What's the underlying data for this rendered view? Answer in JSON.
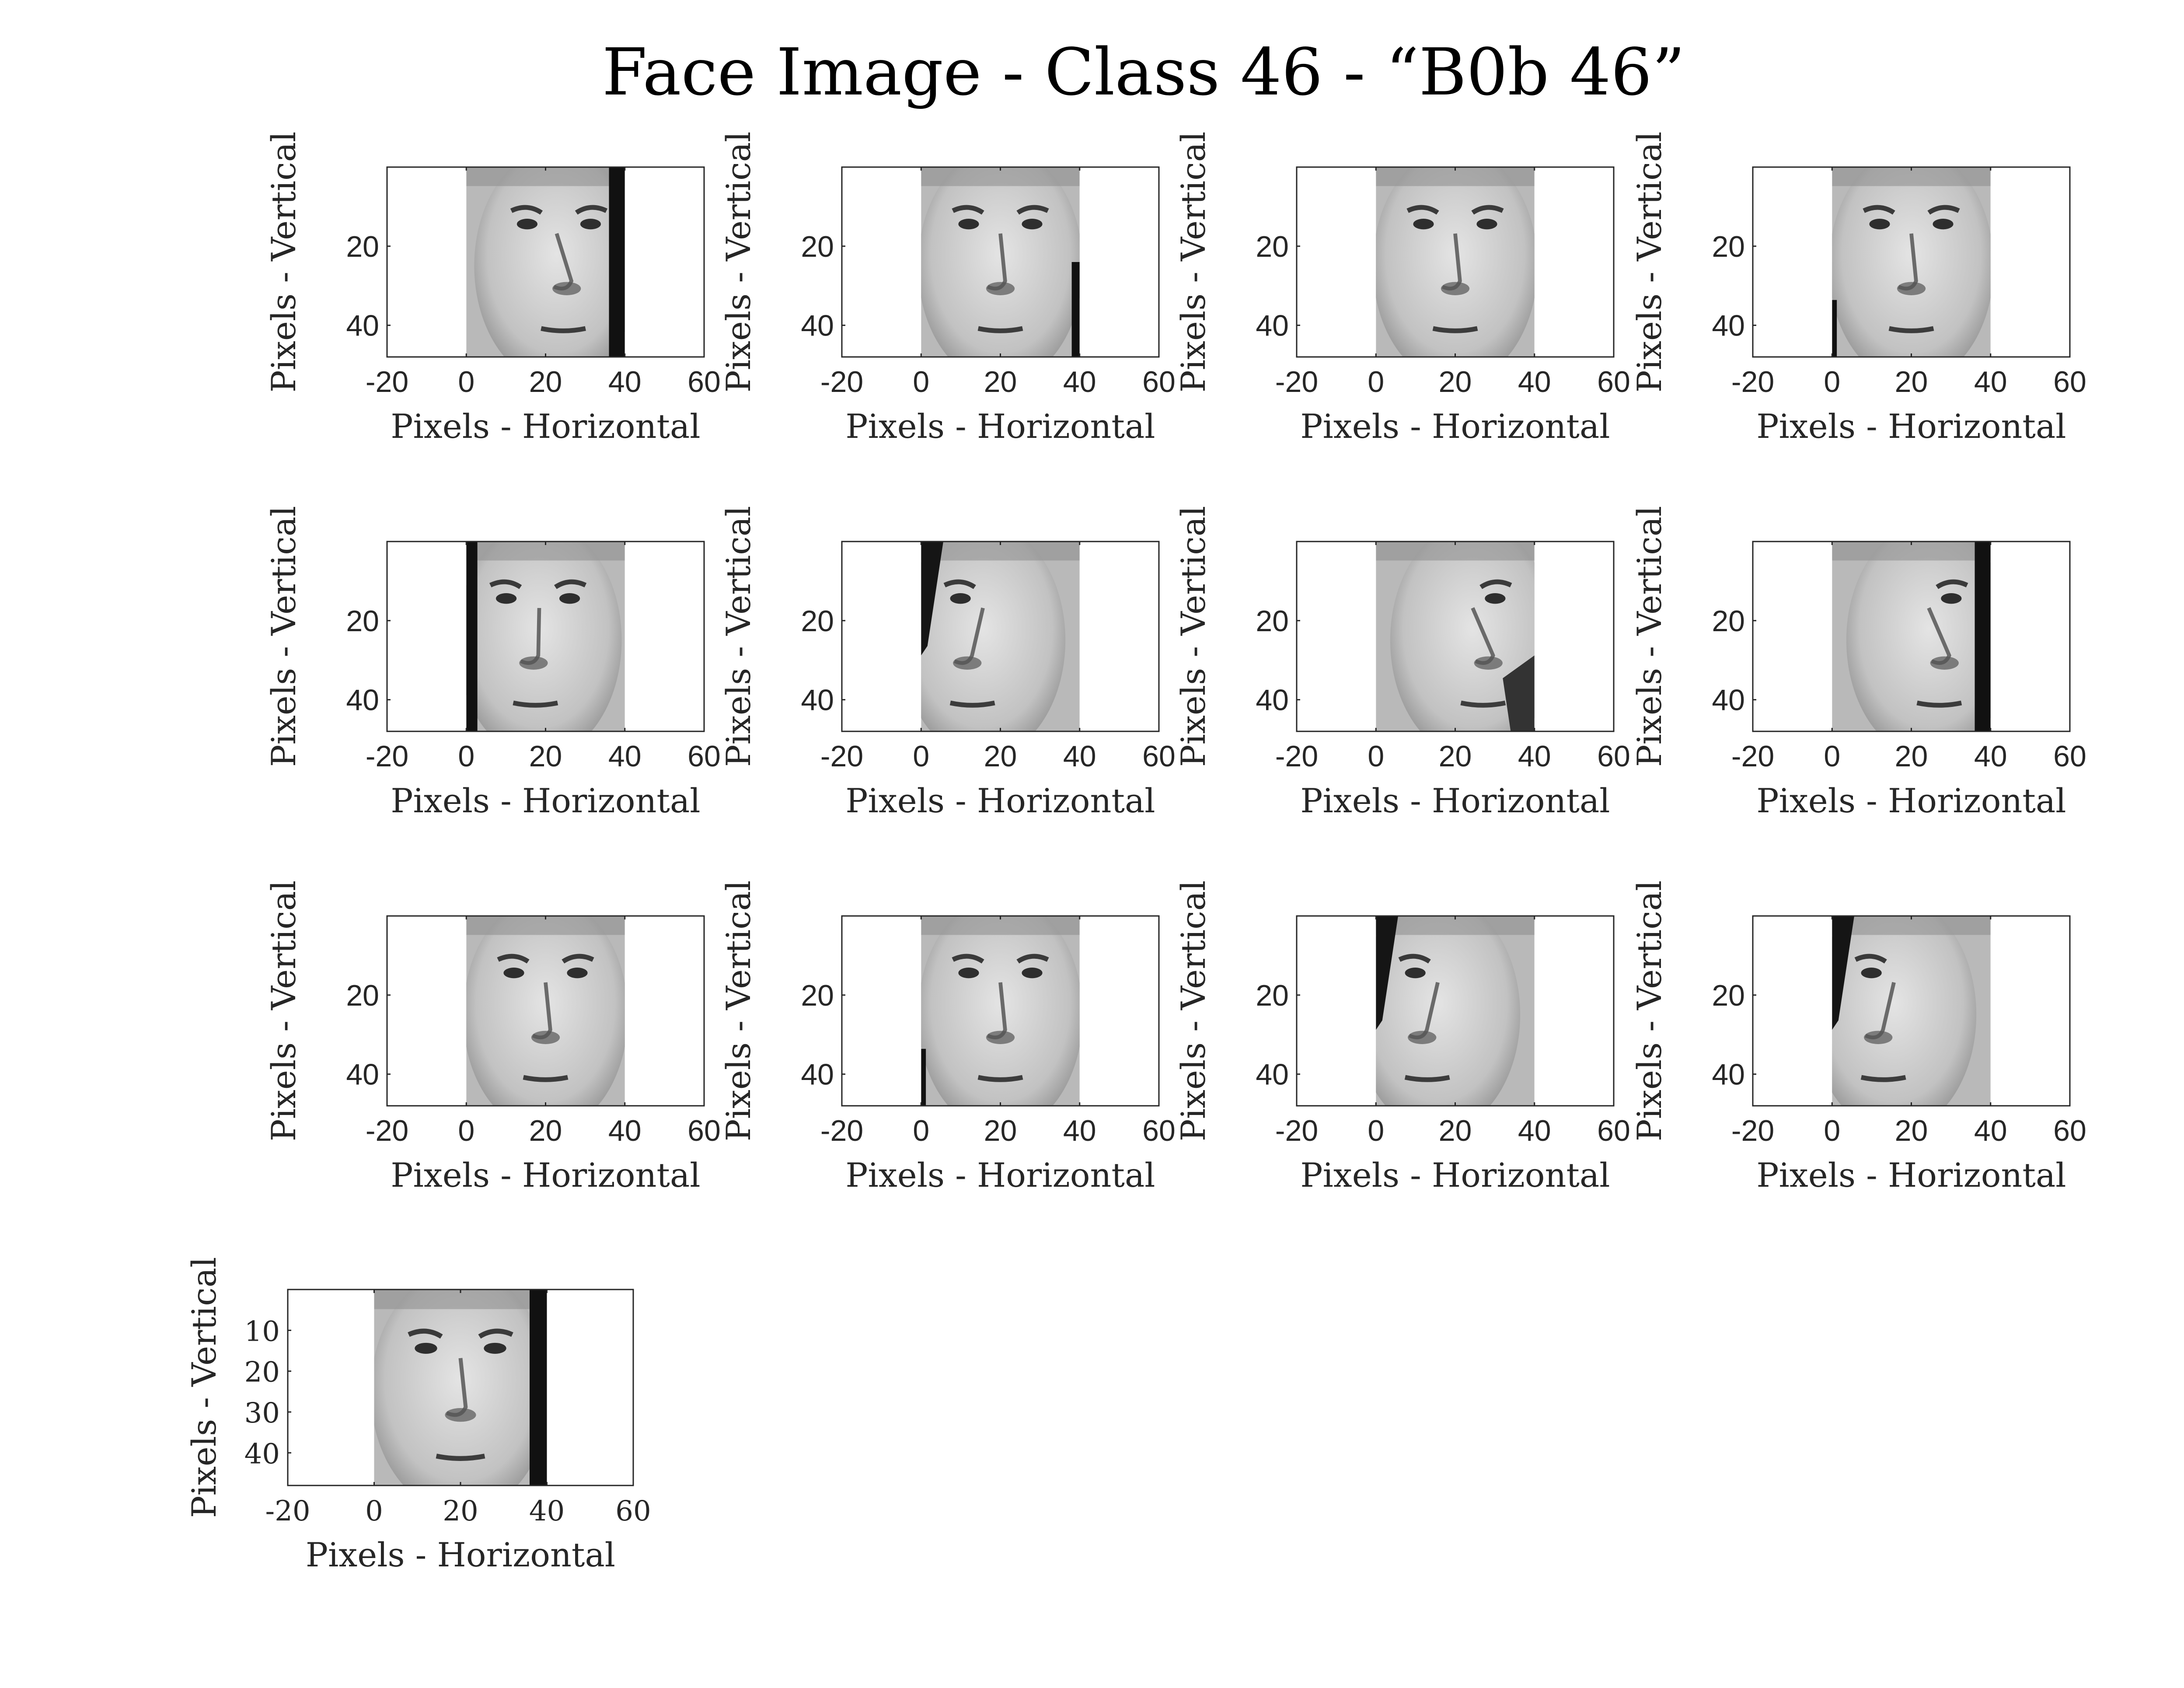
{
  "figure": {
    "title": "Face Image - Class 46 - “B0b 46”",
    "colormap": "gray",
    "background": "#ffffff",
    "axis_color": "#262626"
  },
  "chart_data": [
    {
      "type": "heatmap",
      "xlabel": "Pixels - Horizontal",
      "ylabel": "Pixels - Vertical",
      "xlim": [
        -20,
        60
      ],
      "ylim": [
        0,
        48
      ],
      "image_extent_x": [
        0,
        40
      ],
      "x_ticks": [
        "-20",
        "0",
        "20",
        "40",
        "60"
      ],
      "y_ticks": [
        "20",
        "40"
      ],
      "pose": "turned-right",
      "shadow": "right-edge"
    },
    {
      "type": "heatmap",
      "xlabel": "Pixels - Horizontal",
      "ylabel": "Pixels - Vertical",
      "xlim": [
        -20,
        60
      ],
      "ylim": [
        0,
        48
      ],
      "image_extent_x": [
        0,
        40
      ],
      "x_ticks": [
        "-20",
        "0",
        "20",
        "40",
        "60"
      ],
      "y_ticks": [
        "20",
        "40"
      ],
      "pose": "frontal",
      "shadow": "right-edge-thin"
    },
    {
      "type": "heatmap",
      "xlabel": "Pixels - Horizontal",
      "ylabel": "Pixels - Vertical",
      "xlim": [
        -20,
        60
      ],
      "ylim": [
        0,
        48
      ],
      "image_extent_x": [
        0,
        40
      ],
      "x_ticks": [
        "-20",
        "0",
        "20",
        "40",
        "60"
      ],
      "y_ticks": [
        "20",
        "40"
      ],
      "pose": "frontal",
      "shadow": "none"
    },
    {
      "type": "heatmap",
      "xlabel": "Pixels - Horizontal",
      "ylabel": "Pixels - Vertical",
      "xlim": [
        -20,
        60
      ],
      "ylim": [
        0,
        48
      ],
      "image_extent_x": [
        0,
        40
      ],
      "x_ticks": [
        "-20",
        "0",
        "20",
        "40",
        "60"
      ],
      "y_ticks": [
        "20",
        "40"
      ],
      "pose": "frontal",
      "shadow": "left-edge-thin"
    },
    {
      "type": "heatmap",
      "xlabel": "Pixels - Horizontal",
      "ylabel": "Pixels - Vertical",
      "xlim": [
        -20,
        60
      ],
      "ylim": [
        0,
        48
      ],
      "image_extent_x": [
        0,
        40
      ],
      "x_ticks": [
        "-20",
        "0",
        "20",
        "40",
        "60"
      ],
      "y_ticks": [
        "20",
        "40"
      ],
      "pose": "turned-left",
      "shadow": "left-edge"
    },
    {
      "type": "heatmap",
      "xlabel": "Pixels - Horizontal",
      "ylabel": "Pixels - Vertical",
      "xlim": [
        -20,
        60
      ],
      "ylim": [
        0,
        48
      ],
      "image_extent_x": [
        0,
        40
      ],
      "x_ticks": [
        "-20",
        "0",
        "20",
        "40",
        "60"
      ],
      "y_ticks": [
        "20",
        "40"
      ],
      "pose": "profile-left",
      "shadow": "left-wedge"
    },
    {
      "type": "heatmap",
      "xlabel": "Pixels - Horizontal",
      "ylabel": "Pixels - Vertical",
      "xlim": [
        -20,
        60
      ],
      "ylim": [
        0,
        48
      ],
      "image_extent_x": [
        0,
        40
      ],
      "x_ticks": [
        "-20",
        "0",
        "20",
        "40",
        "60"
      ],
      "y_ticks": [
        "20",
        "40"
      ],
      "pose": "profile-right",
      "shadow": "right-wedge"
    },
    {
      "type": "heatmap",
      "xlabel": "Pixels - Horizontal",
      "ylabel": "Pixels - Vertical",
      "xlim": [
        -20,
        60
      ],
      "ylim": [
        0,
        48
      ],
      "image_extent_x": [
        0,
        40
      ],
      "x_ticks": [
        "-20",
        "0",
        "20",
        "40",
        "60"
      ],
      "y_ticks": [
        "20",
        "40"
      ],
      "pose": "profile-right",
      "shadow": "right-edge"
    },
    {
      "type": "heatmap",
      "xlabel": "Pixels - Horizontal",
      "ylabel": "Pixels - Vertical",
      "xlim": [
        -20,
        60
      ],
      "ylim": [
        0,
        48
      ],
      "image_extent_x": [
        0,
        40
      ],
      "x_ticks": [
        "-20",
        "0",
        "20",
        "40",
        "60"
      ],
      "y_ticks": [
        "20",
        "40"
      ],
      "pose": "frontal",
      "shadow": "none"
    },
    {
      "type": "heatmap",
      "xlabel": "Pixels - Horizontal",
      "ylabel": "Pixels - Vertical",
      "xlim": [
        -20,
        60
      ],
      "ylim": [
        0,
        48
      ],
      "image_extent_x": [
        0,
        40
      ],
      "x_ticks": [
        "-20",
        "0",
        "20",
        "40",
        "60"
      ],
      "y_ticks": [
        "20",
        "40"
      ],
      "pose": "frontal",
      "shadow": "left-edge-thin"
    },
    {
      "type": "heatmap",
      "xlabel": "Pixels - Horizontal",
      "ylabel": "Pixels - Vertical",
      "xlim": [
        -20,
        60
      ],
      "ylim": [
        0,
        48
      ],
      "image_extent_x": [
        0,
        40
      ],
      "x_ticks": [
        "-20",
        "0",
        "20",
        "40",
        "60"
      ],
      "y_ticks": [
        "20",
        "40"
      ],
      "pose": "profile-left",
      "shadow": "left-wedge"
    },
    {
      "type": "heatmap",
      "xlabel": "Pixels - Horizontal",
      "ylabel": "Pixels - Vertical",
      "xlim": [
        -20,
        60
      ],
      "ylim": [
        0,
        48
      ],
      "image_extent_x": [
        0,
        40
      ],
      "x_ticks": [
        "-20",
        "0",
        "20",
        "40",
        "60"
      ],
      "y_ticks": [
        "20",
        "40"
      ],
      "pose": "profile-left",
      "shadow": "left-wedge"
    },
    {
      "type": "heatmap",
      "xlabel": "Pixels - Horizontal",
      "ylabel": "Pixels - Vertical",
      "xlim": [
        -20,
        60
      ],
      "ylim": [
        0,
        48
      ],
      "image_extent_x": [
        0,
        40
      ],
      "x_ticks": [
        "-20",
        "0",
        "20",
        "40",
        "60"
      ],
      "y_ticks": [
        "10",
        "20",
        "30",
        "40"
      ],
      "pose": "frontal",
      "shadow": "right-edge",
      "serif_ticks": true
    }
  ]
}
